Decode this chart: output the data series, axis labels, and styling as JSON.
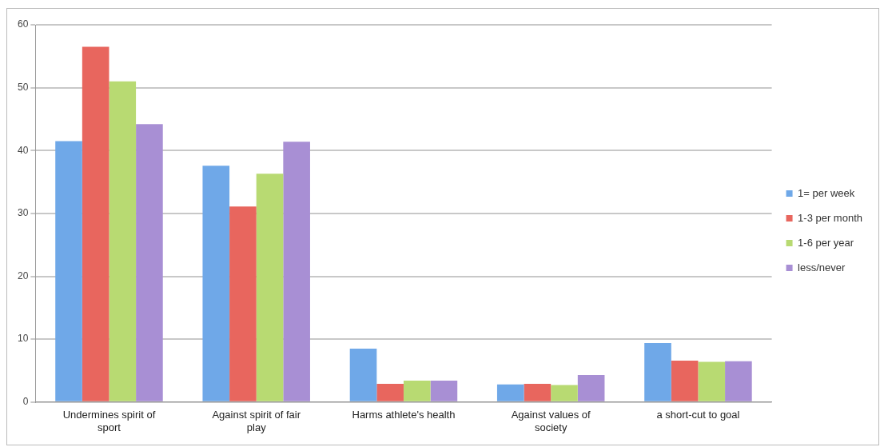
{
  "chart_data": {
    "type": "bar",
    "categories": [
      "Undermines spirit of sport",
      "Against spirit of fair play",
      "Harms athlete's health",
      "Against values of society",
      "a short-cut to goal"
    ],
    "series": [
      {
        "name": "1= per week",
        "color": "#6fa8e8",
        "values": [
          41.5,
          37.6,
          8.5,
          2.8,
          9.4
        ]
      },
      {
        "name": "1-3 per month",
        "color": "#e8665e",
        "values": [
          56.5,
          31.1,
          2.9,
          2.9,
          6.6
        ]
      },
      {
        "name": "1-6 per year",
        "color": "#b8da72",
        "values": [
          51,
          36.3,
          3.4,
          2.7,
          6.4
        ]
      },
      {
        "name": "less/never",
        "color": "#a88fd4",
        "values": [
          44.2,
          41.4,
          3.4,
          4.3,
          6.5
        ]
      }
    ],
    "ylim": [
      0,
      60
    ],
    "yticks": [
      0,
      10,
      20,
      30,
      40,
      50,
      60
    ],
    "grid": "y",
    "legend": "right"
  }
}
